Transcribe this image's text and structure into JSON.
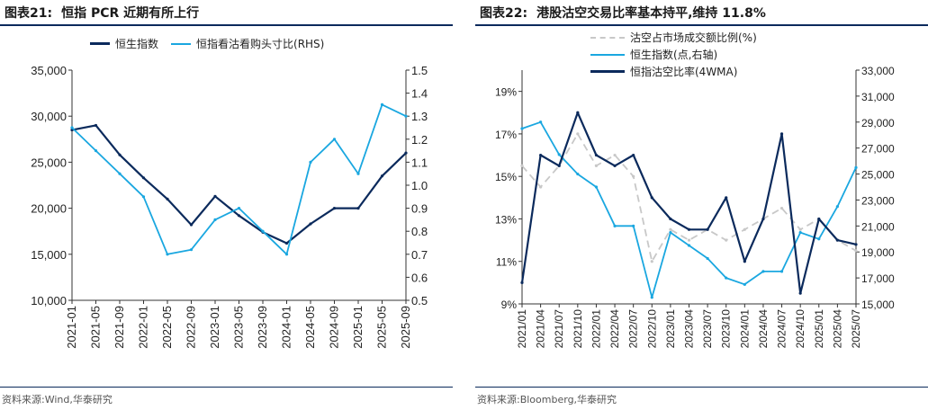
{
  "left": {
    "title_num": "图表21:",
    "title_text": "恒指 PCR 近期有所上行",
    "source": "资料来源:Wind,华泰研究",
    "chart_data": {
      "type": "line",
      "x": [
        "2021-01",
        "2021-05",
        "2021-09",
        "2022-01",
        "2022-05",
        "2022-09",
        "2023-01",
        "2023-05",
        "2023-09",
        "2024-01",
        "2024-05",
        "2024-09",
        "2025-01",
        "2025-05",
        "2025-09"
      ],
      "y_left_ticks": [
        "35,000",
        "30,000",
        "25,000",
        "20,000",
        "15,000",
        "10,000"
      ],
      "ylim_left": [
        10000,
        35000
      ],
      "y_right_ticks": [
        "1.5",
        "1.4",
        "1.3",
        "1.2",
        "1.1",
        "1.0",
        "0.9",
        "0.8",
        "0.7",
        "0.6",
        "0.5"
      ],
      "ylim_right": [
        0.5,
        1.5
      ],
      "grid": false,
      "legend_position": "top",
      "series": [
        {
          "name": "恒生指数",
          "axis": "left",
          "color": "#0b2a5c",
          "values": [
            28500,
            29000,
            25800,
            23300,
            21000,
            18200,
            21300,
            19200,
            17400,
            16200,
            18300,
            20000,
            20000,
            23500,
            26000
          ]
        },
        {
          "name": "恒指看沽看购头寸比(RHS)",
          "axis": "right",
          "color": "#1aa7e0",
          "values": [
            1.25,
            1.15,
            1.05,
            0.95,
            0.7,
            0.72,
            0.85,
            0.9,
            0.8,
            0.7,
            1.1,
            1.2,
            1.05,
            1.35,
            1.3
          ]
        }
      ]
    }
  },
  "right": {
    "title_num": "图表22:",
    "title_text": "港股沽空交易比率基本持平,维持 11.8%",
    "source": "资料来源:Bloomberg,华泰研究",
    "chart_data": {
      "type": "line",
      "x": [
        "2021/01",
        "2021/04",
        "2021/07",
        "2021/10",
        "2022/01",
        "2022/04",
        "2022/07",
        "2022/10",
        "2023/01",
        "2023/04",
        "2023/07",
        "2023/10",
        "2024/01",
        "2024/04",
        "2024/07",
        "2024/10",
        "2025/01",
        "2025/04",
        "2025/07"
      ],
      "y_left_ticks": [
        "19%",
        "17%",
        "15%",
        "13%",
        "11%",
        "9%"
      ],
      "ylim_left": [
        9,
        20
      ],
      "y_right_ticks": [
        "33,000",
        "31,000",
        "29,000",
        "27,000",
        "25,000",
        "23,000",
        "21,000",
        "19,000",
        "17,000",
        "15,000"
      ],
      "ylim_right": [
        15000,
        33000
      ],
      "grid": false,
      "legend_position": "top",
      "series": [
        {
          "name": "沽空占市场成交额比例(%)",
          "axis": "left",
          "color": "#c8c8c8",
          "dashed": true,
          "values": [
            15.5,
            14.5,
            15.5,
            17,
            15.5,
            16,
            15,
            11,
            12.5,
            12,
            12.5,
            12,
            12.5,
            13,
            13.5,
            12.5,
            13,
            12,
            11.5
          ]
        },
        {
          "name": "恒生指数(点,右轴)",
          "axis": "right",
          "color": "#1aa7e0",
          "values": [
            28500,
            29000,
            26500,
            25000,
            24000,
            21000,
            21000,
            15500,
            20500,
            19500,
            18500,
            17000,
            16500,
            17500,
            17500,
            20500,
            20000,
            22500,
            25500
          ]
        },
        {
          "name": "恒指沽空比率(4WMA)",
          "axis": "left",
          "color": "#0b2a5c",
          "values": [
            10,
            16,
            15.5,
            18,
            16,
            15.5,
            16,
            14,
            13,
            12.5,
            12.5,
            14,
            11,
            13,
            17,
            9.5,
            13,
            12,
            11.8
          ]
        }
      ]
    }
  }
}
